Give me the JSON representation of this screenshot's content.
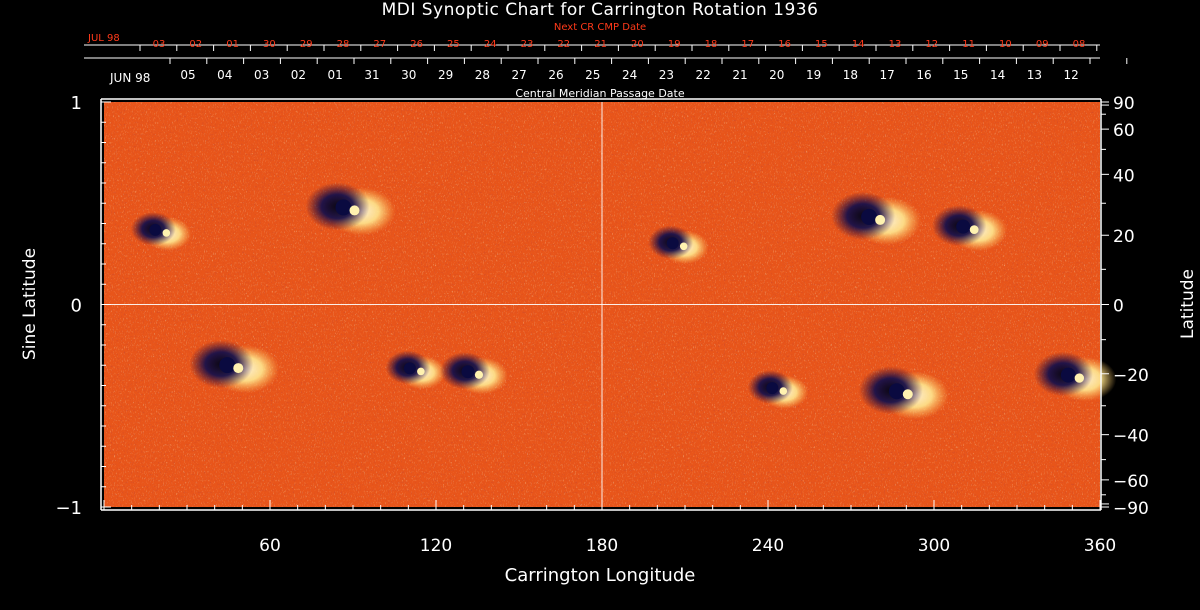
{
  "title": "MDI Synoptic Chart for Carrington Rotation 1936",
  "top_axis": {
    "next_label": "Next CR CMP Date",
    "next_month": "JUL 98",
    "next_dates": [
      "03",
      "02",
      "01",
      "30",
      "29",
      "28",
      "27",
      "26",
      "25",
      "24",
      "23",
      "22",
      "21",
      "20",
      "19",
      "18",
      "17",
      "16",
      "15",
      "14",
      "13",
      "12",
      "11",
      "10",
      "09",
      "08"
    ],
    "current_month": "JUN 98",
    "current_dates": [
      "05",
      "04",
      "03",
      "02",
      "01",
      "31",
      "30",
      "29",
      "28",
      "27",
      "26",
      "25",
      "24",
      "23",
      "22",
      "21",
      "20",
      "19",
      "18",
      "17",
      "16",
      "15",
      "14",
      "13",
      "12"
    ],
    "caption": "Central Meridian Passage Date"
  },
  "colors": {
    "background": "#000000",
    "text": "#ffffff",
    "next_date_text": "#ff3a1a",
    "field_base": "#e8551a",
    "positive_polarity": "#fff2b0",
    "negative_polarity": "#0a0a40"
  },
  "chart_data": {
    "type": "heatmap",
    "title": "MDI Synoptic Chart for Carrington Rotation 1936",
    "xlabel": "Carrington Longitude",
    "ylabel_left": "Sine Latitude",
    "ylabel_right": "Latitude",
    "xlim": [
      0,
      360
    ],
    "x_ticks": [
      60,
      120,
      180,
      240,
      300,
      360
    ],
    "ylim_sine": [
      -1,
      1
    ],
    "y_ticks_left": [
      {
        "value": 1,
        "label": "1"
      },
      {
        "value": 0,
        "label": "0"
      },
      {
        "value": -1,
        "label": "−1"
      }
    ],
    "y_ticks_right": [
      90,
      60,
      40,
      20,
      0,
      -20,
      -40,
      -60,
      -90
    ],
    "reference_lines": {
      "longitude": 180,
      "sine_latitude": 0
    },
    "active_regions": [
      {
        "lon": 20,
        "lat": 21,
        "strength": 0.6
      },
      {
        "lon": 46,
        "lat": -18,
        "strength": 1.0
      },
      {
        "lon": 88,
        "lat": 28,
        "strength": 1.0
      },
      {
        "lon": 112,
        "lat": -19,
        "strength": 0.6
      },
      {
        "lon": 133,
        "lat": -20,
        "strength": 0.7
      },
      {
        "lon": 207,
        "lat": 17,
        "strength": 0.6
      },
      {
        "lon": 243,
        "lat": -25,
        "strength": 0.6
      },
      {
        "lon": 278,
        "lat": 25,
        "strength": 1.0
      },
      {
        "lon": 288,
        "lat": -26,
        "strength": 1.0
      },
      {
        "lon": 312,
        "lat": 22,
        "strength": 0.8
      },
      {
        "lon": 350,
        "lat": -21,
        "strength": 0.9
      }
    ]
  }
}
